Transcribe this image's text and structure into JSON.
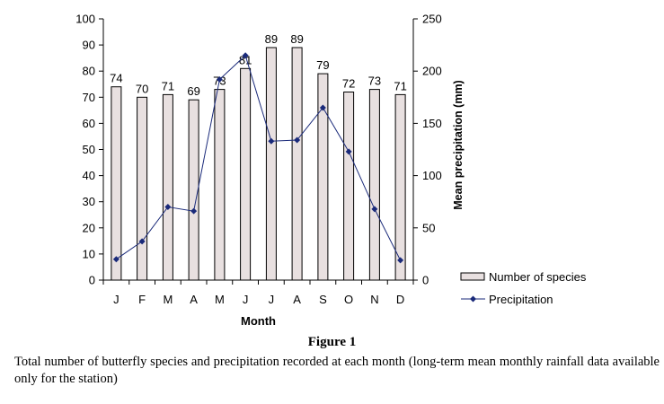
{
  "chart_data": {
    "type": "bar+line",
    "categories": [
      "J",
      "F",
      "M",
      "A",
      "M",
      "J",
      "J",
      "A",
      "S",
      "O",
      "N",
      "D"
    ],
    "series": [
      {
        "name": "Number of species",
        "type": "bar",
        "axis": "left",
        "values": [
          74,
          70,
          71,
          69,
          73,
          81,
          89,
          89,
          79,
          72,
          73,
          71
        ],
        "color": "#e8e0e0"
      },
      {
        "name": "Precipitation",
        "type": "line",
        "axis": "right",
        "values": [
          20,
          37,
          70,
          66,
          192,
          215,
          133,
          134,
          165,
          123,
          68,
          19
        ],
        "color": "#1a2a7a"
      }
    ],
    "xlabel": "Month",
    "ylabel_left": "",
    "ylabel_right": "Mean precipitation (mm)",
    "ylim_left": [
      0,
      100
    ],
    "ylim_right": [
      0,
      250
    ],
    "yticks_left": [
      0,
      10,
      20,
      30,
      40,
      50,
      60,
      70,
      80,
      90,
      100
    ],
    "yticks_right": [
      0,
      50,
      100,
      150,
      200,
      250
    ],
    "legend": [
      "Number of species",
      "Precipitation"
    ],
    "legend_position": "bottom-right",
    "grid": false
  },
  "figure": {
    "label": "Figure 1",
    "caption": "Total number of butterfly species and precipitation recorded at each month (long-term mean monthly rainfall data available only for the station)"
  }
}
